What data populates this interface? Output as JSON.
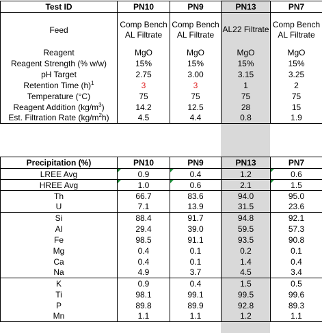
{
  "table1": {
    "header": [
      "Test ID",
      "PN10",
      "PN9",
      "PN13",
      "PN7"
    ],
    "feed_label": "Feed",
    "feed_values": [
      "Comp Bench AL Filtrate",
      "Comp Bench AL Filtrate",
      "AL22 Filtrate",
      "Comp Bench AL Filtrate"
    ],
    "rows": [
      {
        "label": "Reagent",
        "values": [
          "MgO",
          "MgO",
          "MgO",
          "MgO"
        ]
      },
      {
        "label": "Reagent Strength (% w/w)",
        "values": [
          "15%",
          "15%",
          "15%",
          "15%"
        ]
      },
      {
        "label": "pH Target",
        "values": [
          "2.75",
          "3.00",
          "3.15",
          "3.25"
        ]
      },
      {
        "label": "Retention Time (h)",
        "sup": "1",
        "values": [
          "3",
          "3",
          "1",
          "2"
        ]
      },
      {
        "label": "Temperature (°C)",
        "values": [
          "75",
          "75",
          "75",
          "75"
        ]
      },
      {
        "label": "Reagent Addition (kg/m",
        "sup": "3",
        "label_end": ")",
        "values": [
          "14.2",
          "12.5",
          "28",
          "15"
        ]
      },
      {
        "label": "Est. Filtration Rate (kg/m",
        "sup": "2",
        "label_end": "h)",
        "values": [
          "4.5",
          "4.4",
          "0.8",
          "1.9"
        ]
      }
    ]
  },
  "table2": {
    "header": [
      "Precipitation (%)",
      "PN10",
      "PN9",
      "PN13",
      "PN7"
    ],
    "groups": [
      [
        {
          "label": "LREE Avg",
          "values": [
            "0.9",
            "0.4",
            "1.2",
            "0.6"
          ]
        }
      ],
      [
        {
          "label": "HREE Avg",
          "values": [
            "1.0",
            "0.6",
            "2.1",
            "1.5"
          ]
        }
      ],
      [
        {
          "label": "Th",
          "values": [
            "66.7",
            "83.6",
            "94.0",
            "95.0"
          ]
        },
        {
          "label": "U",
          "values": [
            "7.1",
            "13.9",
            "31.5",
            "23.6"
          ]
        }
      ],
      [
        {
          "label": "Si",
          "values": [
            "88.4",
            "91.7",
            "94.8",
            "92.1"
          ]
        },
        {
          "label": "Al",
          "values": [
            "29.4",
            "39.0",
            "59.5",
            "57.3"
          ]
        },
        {
          "label": "Fe",
          "values": [
            "98.5",
            "91.1",
            "93.5",
            "90.8"
          ]
        },
        {
          "label": "Mg",
          "values": [
            "0.4",
            "0.1",
            "0.2",
            "0.1"
          ]
        },
        {
          "label": "Ca",
          "values": [
            "0.4",
            "0.1",
            "1.4",
            "0.4"
          ]
        },
        {
          "label": "Na",
          "values": [
            "4.9",
            "3.7",
            "4.5",
            "3.4"
          ]
        }
      ],
      [
        {
          "label": "K",
          "values": [
            "0.9",
            "0.4",
            "1.5",
            "0.5"
          ]
        },
        {
          "label": "Ti",
          "values": [
            "98.1",
            "99.1",
            "99.5",
            "99.6"
          ]
        },
        {
          "label": "P",
          "values": [
            "89.8",
            "89.9",
            "92.8",
            "89.3"
          ]
        },
        {
          "label": "Mn",
          "values": [
            "1.1",
            "1.1",
            "1.2",
            "1.1"
          ]
        }
      ]
    ]
  },
  "colors": {
    "shaded_column": "#d9d9d9",
    "highlight_text": "#e02020",
    "comment_marker": "#1f8f3a"
  }
}
